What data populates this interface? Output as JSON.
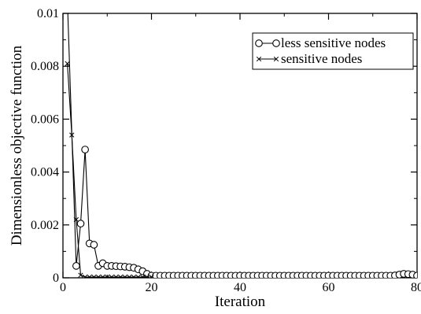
{
  "chart_data": {
    "type": "line",
    "title": "",
    "xlabel": "Iteration",
    "ylabel": "Dimensionless objective function",
    "xlim": [
      0,
      80
    ],
    "ylim": [
      0,
      0.01
    ],
    "xticks": [
      0,
      20,
      40,
      60,
      80
    ],
    "xtick_labels": [
      "0",
      "20",
      "40",
      "60",
      "80"
    ],
    "yticks": [
      0,
      0.002,
      0.004,
      0.006,
      0.008,
      0.01
    ],
    "ytick_labels": [
      "0",
      "0.002",
      "0.004",
      "0.006",
      "0.008",
      "0.01"
    ],
    "grid": false,
    "legend_position": "top-right",
    "series": [
      {
        "name": "less sensitive nodes",
        "marker": "circle",
        "color": "#000000",
        "x": [
          1,
          3,
          4,
          5,
          6,
          7,
          8,
          9,
          10,
          11,
          12,
          13,
          14,
          15,
          16,
          17,
          18,
          19,
          20,
          21,
          22,
          23,
          24,
          25,
          26,
          27,
          28,
          29,
          30,
          31,
          32,
          33,
          34,
          35,
          36,
          37,
          38,
          39,
          40,
          41,
          42,
          43,
          44,
          45,
          46,
          47,
          48,
          49,
          50,
          51,
          52,
          53,
          54,
          55,
          56,
          57,
          58,
          59,
          60,
          61,
          62,
          63,
          64,
          65,
          66,
          67,
          68,
          69,
          70,
          71,
          72,
          73,
          74,
          75,
          76,
          77,
          78,
          79,
          80
        ],
        "y": [
          0.0105,
          0.00045,
          0.00205,
          0.00485,
          0.0013,
          0.00125,
          0.00045,
          0.00055,
          0.00045,
          0.00045,
          0.00044,
          0.00043,
          0.00042,
          0.0004,
          0.00038,
          0.00032,
          0.00025,
          0.00015,
          8e-05,
          8e-05,
          8e-05,
          8e-05,
          8e-05,
          8e-05,
          8e-05,
          8e-05,
          8e-05,
          8e-05,
          8e-05,
          8e-05,
          8e-05,
          8e-05,
          8e-05,
          8e-05,
          8e-05,
          8e-05,
          8e-05,
          8e-05,
          8e-05,
          8e-05,
          8e-05,
          8e-05,
          8e-05,
          8e-05,
          8e-05,
          8e-05,
          8e-05,
          8e-05,
          8e-05,
          8e-05,
          8e-05,
          8e-05,
          8e-05,
          8e-05,
          8e-05,
          8e-05,
          8e-05,
          8e-05,
          8e-05,
          8e-05,
          8e-05,
          8e-05,
          8e-05,
          8e-05,
          8e-05,
          8e-05,
          8e-05,
          8e-05,
          8e-05,
          8e-05,
          8e-05,
          8e-05,
          8e-05,
          9e-05,
          0.00012,
          0.00015,
          0.00014,
          0.00012,
          8e-05
        ]
      },
      {
        "name": "sensitive  nodes",
        "marker": "x",
        "color": "#000000",
        "x": [
          1,
          2,
          3,
          4,
          5,
          6,
          7,
          8,
          9,
          10,
          11,
          12,
          13,
          14,
          15,
          16,
          17,
          18,
          19,
          20
        ],
        "y": [
          0.0081,
          0.0054,
          0.0022,
          0.0001,
          3e-05,
          3e-05,
          3e-05,
          3e-05,
          3e-05,
          3e-05,
          3e-05,
          3e-05,
          3e-05,
          3e-05,
          3e-05,
          3e-05,
          3e-05,
          3e-05,
          3e-05,
          3e-05
        ]
      }
    ]
  }
}
